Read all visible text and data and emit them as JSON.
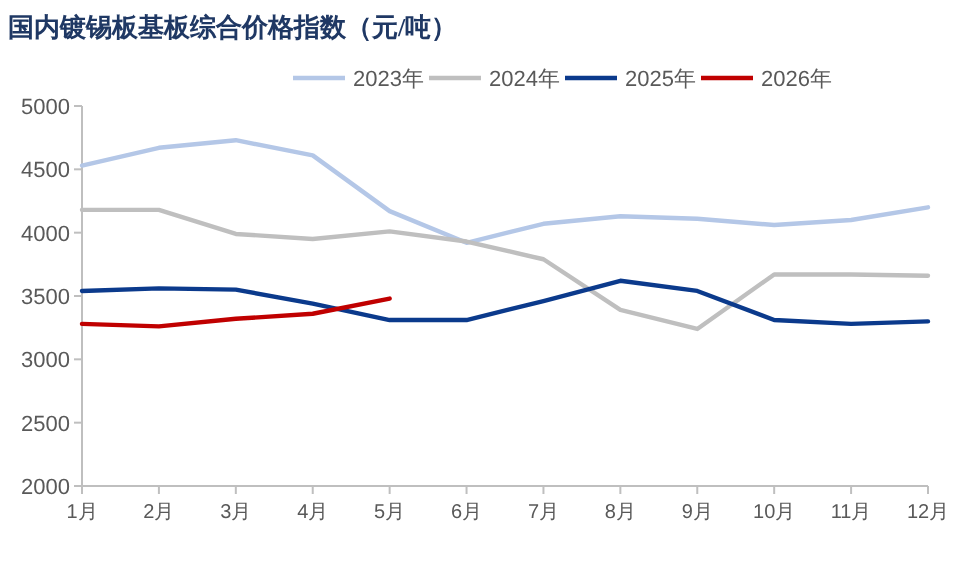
{
  "chart_data": {
    "type": "line",
    "title": "国内镀锡板基板综合价格指数（元/吨）",
    "categories": [
      "1月",
      "2月",
      "3月",
      "4月",
      "5月",
      "6月",
      "7月",
      "8月",
      "9月",
      "10月",
      "11月",
      "12月"
    ],
    "series": [
      {
        "name": "2023年",
        "color": "#b4c7e7",
        "values": [
          4530,
          4670,
          4730,
          4610,
          4170,
          3920,
          4070,
          4130,
          4110,
          4060,
          4100,
          4200
        ]
      },
      {
        "name": "2024年",
        "color": "#bfbfbf",
        "values": [
          4180,
          4180,
          3990,
          3950,
          4010,
          3930,
          3790,
          3390,
          3240,
          3670,
          3670,
          3660
        ]
      },
      {
        "name": "2025年",
        "color": "#0b3a8c",
        "values": [
          3540,
          3560,
          3550,
          3440,
          3310,
          3310,
          3460,
          3620,
          3540,
          3310,
          3280,
          3300
        ]
      },
      {
        "name": "2026年",
        "color": "#c00000",
        "values": [
          3280,
          3260,
          3320,
          3360,
          3480,
          null,
          null,
          null,
          null,
          null,
          null,
          null
        ]
      }
    ],
    "ylim": [
      2000,
      5000
    ],
    "yticks": [
      2000,
      2500,
      3000,
      3500,
      4000,
      4500,
      5000
    ],
    "grid": false,
    "legend": "top",
    "marker": "none",
    "line_style": "solid"
  }
}
